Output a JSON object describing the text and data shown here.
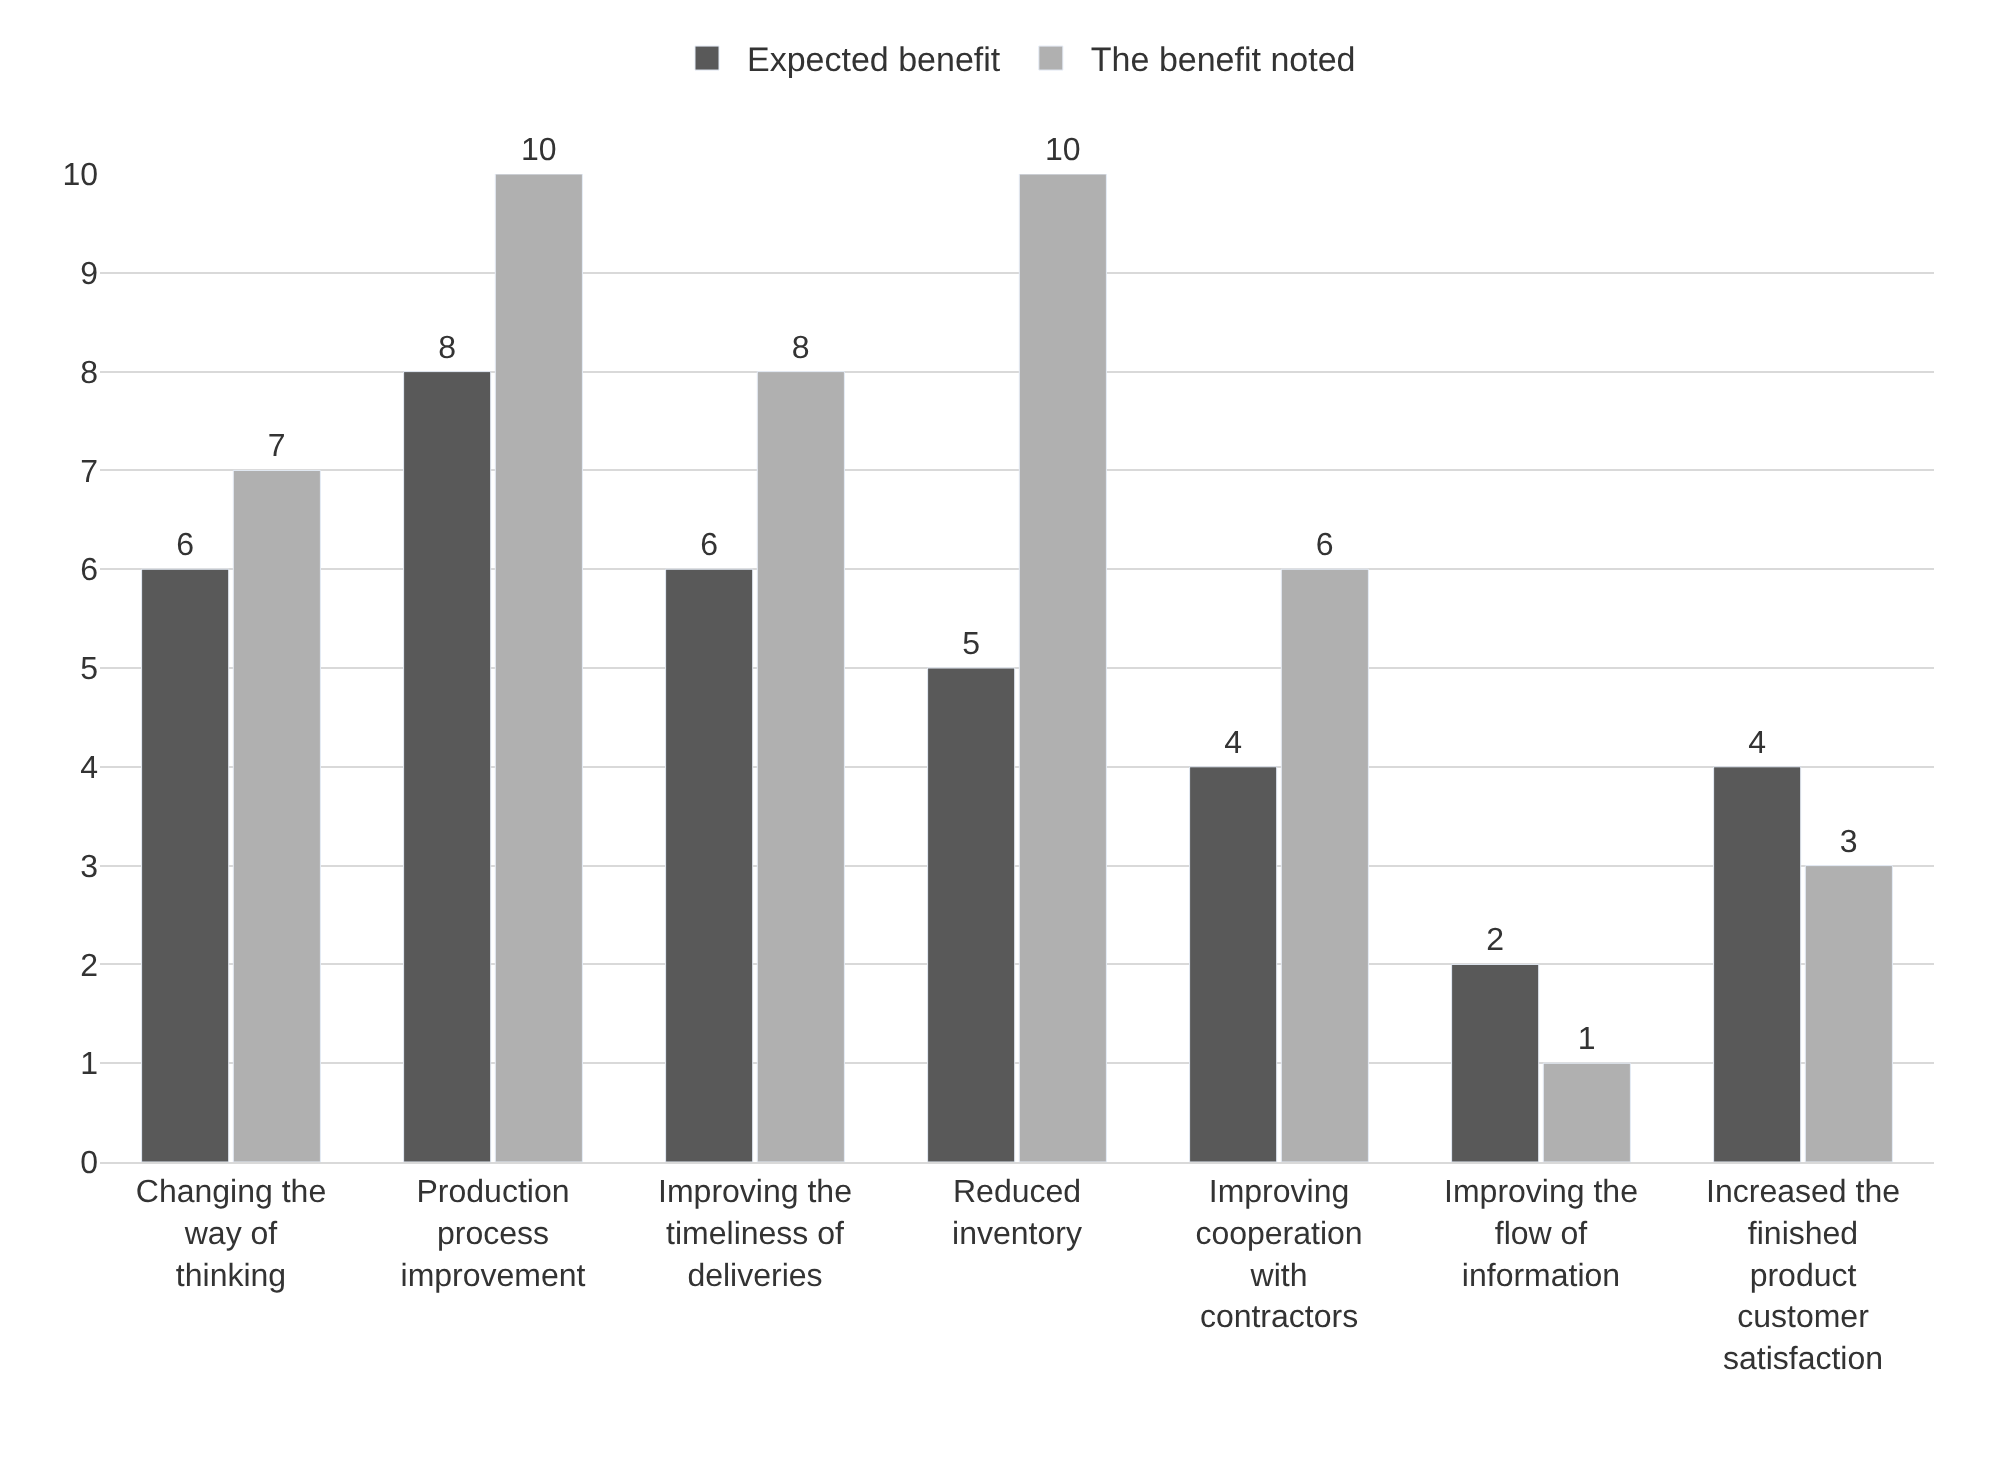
{
  "chart_data": {
    "type": "bar",
    "categories": [
      "Changing the way of thinking",
      "Production process improvement",
      "Improving the timeliness of deliveries",
      "Reduced inventory",
      "Improving cooperation with contractors",
      "Improving the flow of information",
      "Increased the finished product customer satisfaction"
    ],
    "series": [
      {
        "name": "Expected benefit",
        "color": "#595959",
        "values": [
          6,
          8,
          6,
          5,
          4,
          2,
          4
        ]
      },
      {
        "name": "The benefit noted",
        "color": "#b0b0b0",
        "values": [
          7,
          10,
          8,
          10,
          6,
          1,
          3
        ]
      }
    ],
    "ylim": [
      0,
      10
    ],
    "yticks": [
      0,
      1,
      2,
      3,
      4,
      5,
      6,
      7,
      8,
      9,
      10
    ],
    "grid": "y",
    "legend": "top",
    "data_labels": true
  }
}
